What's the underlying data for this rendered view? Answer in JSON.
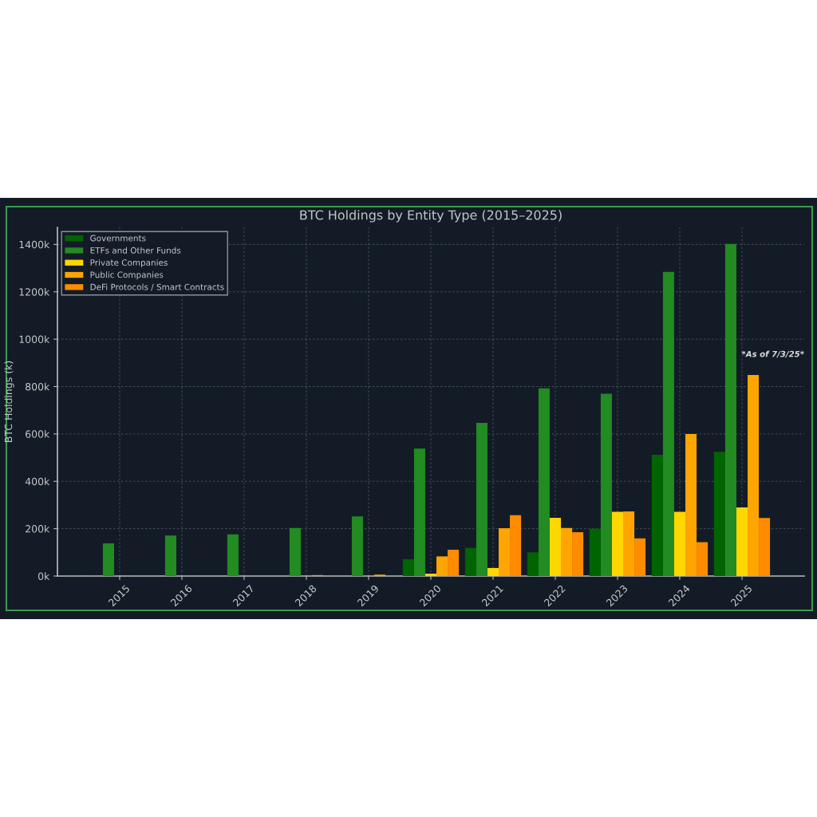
{
  "chart_data": {
    "type": "bar",
    "title": "BTC Holdings by Entity Type (2015–2025)",
    "ylabel": "BTC Holdings (k)",
    "categories": [
      "2015",
      "2016",
      "2017",
      "2018",
      "2019",
      "2020",
      "2021",
      "2022",
      "2023",
      "2024",
      "2025"
    ],
    "series": [
      {
        "name": "Governments",
        "color": "#006400",
        "values": [
          0,
          0,
          0,
          0,
          0,
          71,
          119,
          100,
          200,
          512,
          525
        ]
      },
      {
        "name": "ETFs and Other Funds",
        "color": "#228b22",
        "values": [
          138,
          171,
          176,
          203,
          252,
          538,
          647,
          792,
          770,
          1284,
          1402
        ]
      },
      {
        "name": "Private Companies",
        "color": "#ffd700",
        "values": [
          0,
          0,
          0,
          0,
          0,
          10,
          34,
          246,
          271,
          271,
          290
        ]
      },
      {
        "name": "Public Companies",
        "color": "#ffa500",
        "values": [
          0,
          0,
          0,
          4,
          6,
          83,
          202,
          203,
          273,
          600,
          849
        ]
      },
      {
        "name": "DeFi Protocols / Smart Contracts",
        "color": "#ff8c00",
        "values": [
          0,
          0,
          0,
          0,
          0,
          111,
          257,
          185,
          159,
          143,
          245
        ]
      }
    ],
    "ylim": [
      0,
      1472
    ],
    "yticks": [
      {
        "value": 0,
        "label": "0k"
      },
      {
        "value": 200,
        "label": "200k"
      },
      {
        "value": 400,
        "label": "400k"
      },
      {
        "value": 600,
        "label": "600k"
      },
      {
        "value": 800,
        "label": "800k"
      },
      {
        "value": 1000,
        "label": "1000k"
      },
      {
        "value": 1200,
        "label": "1200k"
      },
      {
        "value": 1400,
        "label": "1400k"
      }
    ],
    "grid": true,
    "legend": "top left",
    "annotations": [
      "*As of 7/3/25*"
    ]
  }
}
